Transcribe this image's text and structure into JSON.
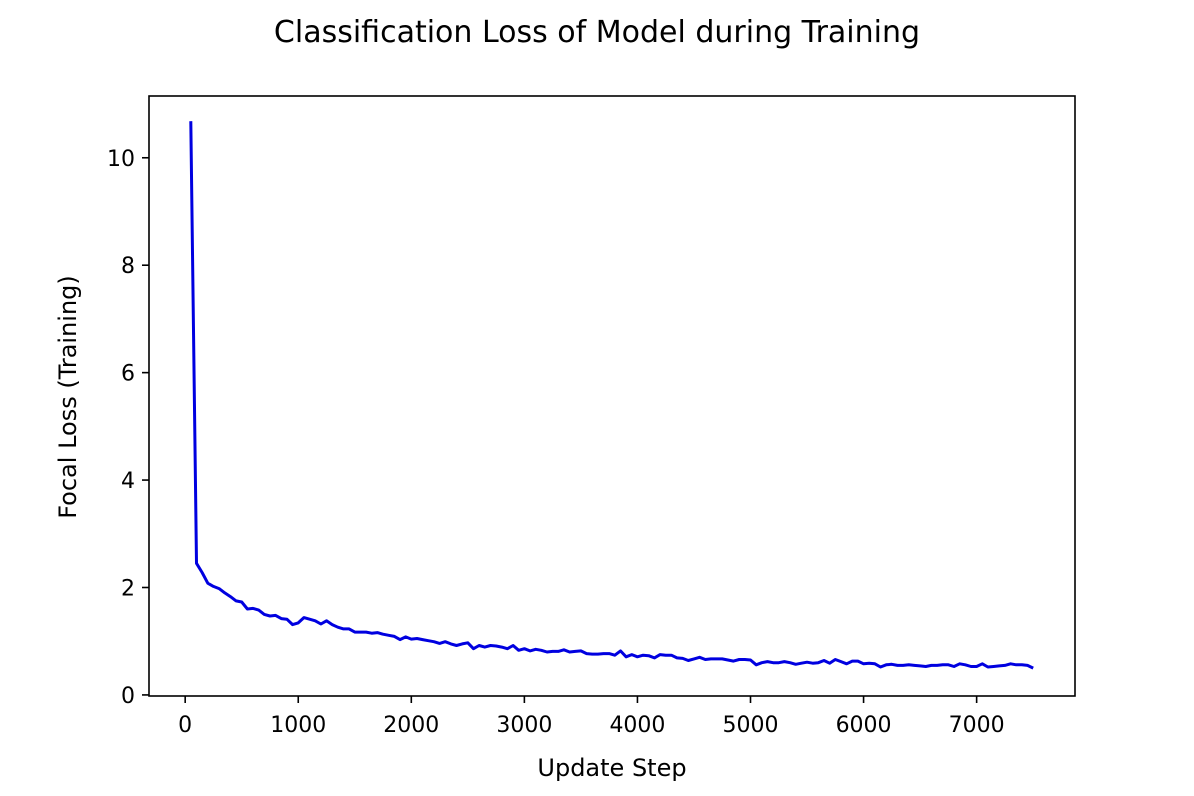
{
  "chart_data": {
    "type": "line",
    "title": "Classification Loss of Model during Training",
    "xlabel": "Update Step",
    "ylabel": "Focal Loss (Training)",
    "xlim": [
      -320,
      7870
    ],
    "ylim": [
      -0.02,
      11.15
    ],
    "xticks": [
      0,
      1000,
      2000,
      3000,
      4000,
      5000,
      6000,
      7000
    ],
    "yticks": [
      0,
      2,
      4,
      6,
      8,
      10
    ],
    "grid": false,
    "line_color": "#0000e0",
    "series": [
      {
        "x": [
          50,
          100,
          150,
          200,
          250,
          300,
          350,
          400,
          450,
          500,
          550,
          600,
          650,
          700,
          750,
          800,
          850,
          900,
          950,
          1000,
          1050,
          1100,
          1150,
          1200,
          1250,
          1300,
          1350,
          1400,
          1450,
          1500,
          1550,
          1600,
          1650,
          1700,
          1750,
          1800,
          1850,
          1900,
          1950,
          2000,
          2050,
          2100,
          2150,
          2200,
          2250,
          2300,
          2350,
          2400,
          2450,
          2500,
          2550,
          2600,
          2650,
          2700,
          2750,
          2800,
          2850,
          2900,
          2950,
          3000,
          3050,
          3100,
          3150,
          3200,
          3250,
          3300,
          3350,
          3400,
          3450,
          3500,
          3550,
          3600,
          3650,
          3700,
          3750,
          3800,
          3850,
          3900,
          3950,
          4000,
          4050,
          4100,
          4150,
          4200,
          4250,
          4300,
          4350,
          4400,
          4450,
          4500,
          4550,
          4600,
          4650,
          4700,
          4750,
          4800,
          4850,
          4900,
          4950,
          5000,
          5050,
          5100,
          5150,
          5200,
          5250,
          5300,
          5350,
          5400,
          5450,
          5500,
          5550,
          5600,
          5650,
          5700,
          5750,
          5800,
          5850,
          5900,
          5950,
          6000,
          6050,
          6100,
          6150,
          6200,
          6250,
          6300,
          6350,
          6400,
          6450,
          6500,
          6550,
          6600,
          6650,
          6700,
          6750,
          6800,
          6850,
          6900,
          6950,
          7000,
          7050,
          7100,
          7150,
          7200,
          7250,
          7300,
          7350,
          7400,
          7450,
          7500
        ],
        "y": [
          10.68,
          2.45,
          2.28,
          2.08,
          2.02,
          1.98,
          1.9,
          1.83,
          1.75,
          1.73,
          1.6,
          1.61,
          1.58,
          1.5,
          1.47,
          1.48,
          1.42,
          1.41,
          1.31,
          1.34,
          1.44,
          1.41,
          1.38,
          1.32,
          1.38,
          1.31,
          1.26,
          1.23,
          1.23,
          1.17,
          1.17,
          1.17,
          1.15,
          1.16,
          1.13,
          1.11,
          1.09,
          1.03,
          1.08,
          1.04,
          1.05,
          1.03,
          1.01,
          0.99,
          0.96,
          0.99,
          0.95,
          0.92,
          0.95,
          0.97,
          0.86,
          0.92,
          0.89,
          0.92,
          0.91,
          0.89,
          0.86,
          0.92,
          0.83,
          0.86,
          0.82,
          0.85,
          0.83,
          0.8,
          0.81,
          0.81,
          0.84,
          0.8,
          0.81,
          0.82,
          0.77,
          0.76,
          0.76,
          0.77,
          0.77,
          0.74,
          0.82,
          0.71,
          0.75,
          0.71,
          0.74,
          0.73,
          0.69,
          0.75,
          0.74,
          0.74,
          0.69,
          0.68,
          0.64,
          0.67,
          0.7,
          0.66,
          0.67,
          0.67,
          0.67,
          0.65,
          0.63,
          0.66,
          0.66,
          0.65,
          0.56,
          0.6,
          0.62,
          0.6,
          0.6,
          0.62,
          0.6,
          0.57,
          0.59,
          0.61,
          0.59,
          0.6,
          0.64,
          0.59,
          0.66,
          0.62,
          0.58,
          0.63,
          0.63,
          0.58,
          0.59,
          0.58,
          0.52,
          0.56,
          0.57,
          0.55,
          0.55,
          0.56,
          0.55,
          0.54,
          0.53,
          0.55,
          0.55,
          0.56,
          0.56,
          0.53,
          0.58,
          0.56,
          0.53,
          0.53,
          0.58,
          0.52,
          0.53,
          0.54,
          0.55,
          0.58,
          0.56,
          0.56,
          0.55,
          0.5
        ]
      }
    ]
  }
}
